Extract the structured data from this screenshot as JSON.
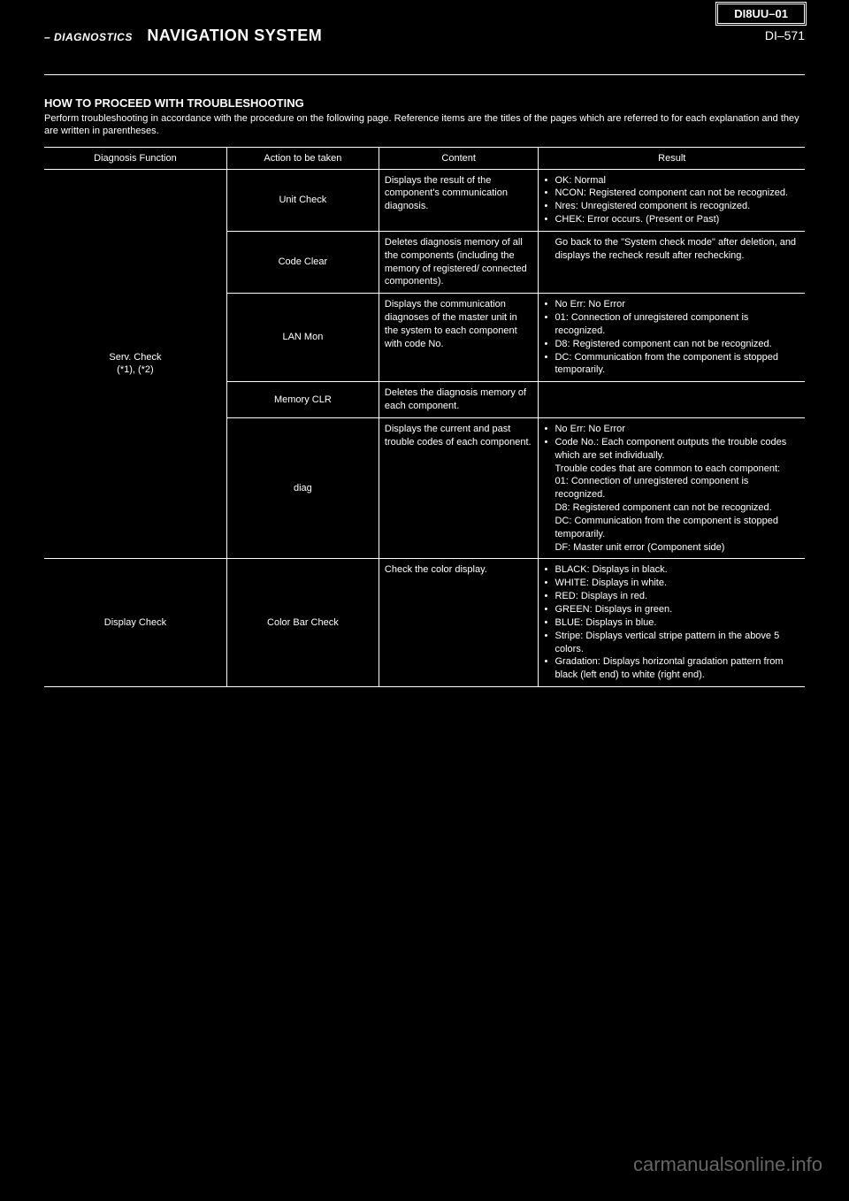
{
  "header": {
    "title": "HOW TO PROCEED WITH TROUBLESHOOTING",
    "page_num": "DI–571",
    "box_label": "DI8UU–01",
    "info_prefix": "– DIAGNOSTICS",
    "section_title": "NAVIGATION SYSTEM"
  },
  "section_sub": "HOW TO PROCEED WITH TROUBLESHOOTING",
  "note": "Perform troubleshooting in accordance with the procedure on the following page. Reference items are the titles of the pages which are referred to for each explanation and they are written in parentheses.",
  "table": {
    "headers": [
      "Diagnosis Function",
      "Action to be taken",
      "Content",
      "Result"
    ],
    "col_widths": [
      "24%",
      "20%",
      "21%",
      "35%"
    ],
    "rows": [
      {
        "diag": "Serv. Check\n(*1), (*2)",
        "diag_span": 5,
        "act": "Unit Check",
        "content": "Displays the result of the component's communication diagnosis.",
        "result": "• OK: Normal\n• NCON: Registered component can not be recognized.\n• Nres: Unregistered component is recognized.\n• CHEK: Error occurs. (Present or Past)"
      },
      {
        "act": "Code Clear",
        "content": "Deletes diagnosis memory of all the components (including the memory of registered/ connected components).",
        "result": "Go back to the \"System check mode\" after deletion, and displays the recheck result after rechecking."
      },
      {
        "act": "LAN Mon",
        "content": "Displays the communication diagnoses of the master unit in the system to each component with code No.",
        "result": "• No Err: No Error\n• 01: Connection of unregistered component is recognized.\n• D8: Registered component can not be recognized.\n• DC: Communication from the component is stopped temporarily."
      },
      {
        "act": "Memory CLR",
        "content": "Deletes the diagnosis memory of each component.",
        "result": ""
      },
      {
        "act": "diag",
        "content": "Displays the current and past trouble codes of each component.",
        "result": "• No Err: No Error\n• Code No.: Each component outputs the trouble codes which are set individually.\n Trouble codes that are common to each component:\n 01: Connection of unregistered component is recognized.\n D8: Registered component can not be recognized.\n DC: Communication from the component is stopped temporarily.\n DF: Master unit error (Component side)"
      },
      {
        "diag": "Display Check",
        "diag_span": 1,
        "act": "Color Bar Check",
        "content": "Check the color display.",
        "result": "• BLACK: Displays in black.\n• WHITE: Displays in white.\n• RED: Displays in red.\n• GREEN: Displays in green.\n• BLUE: Displays in blue.\n• Stripe: Displays vertical stripe pattern in the above 5 colors.\n• Gradation: Displays horizontal gradation pattern from black (left end) to white (right end)."
      }
    ]
  },
  "watermark": "carmanualsonline.info",
  "colors": {
    "bg": "#000000",
    "fg": "#ffffff",
    "watermark": "#666666"
  }
}
